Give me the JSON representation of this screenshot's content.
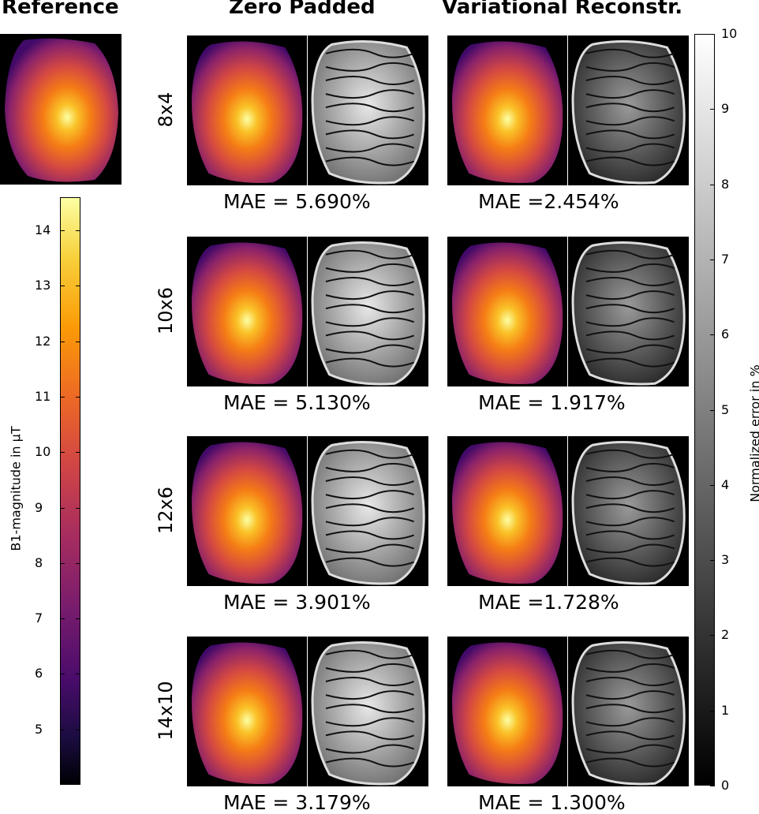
{
  "columns": {
    "reference": "Reference",
    "zero_padded": "Zero Padded",
    "variational": "Variational Reconstr."
  },
  "rows": [
    {
      "label": "8x4",
      "mae_zero": "MAE = 5.690%",
      "mae_var": "MAE =2.454%"
    },
    {
      "label": "10x6",
      "mae_zero": "MAE = 5.130%",
      "mae_var": "MAE = 1.917%"
    },
    {
      "label": "12x6",
      "mae_zero": "MAE = 3.901%",
      "mae_var": "MAE =1.728%"
    },
    {
      "label": "14x10",
      "mae_zero": "MAE = 3.179%",
      "mae_var": "MAE = 1.300%"
    }
  ],
  "b1_colorbar": {
    "label": "B1-magnitude in µT",
    "min": 4.0,
    "max": 14.6,
    "ticks": [
      "5",
      "6",
      "7",
      "8",
      "9",
      "10",
      "11",
      "12",
      "13",
      "14"
    ],
    "colormap": "inferno"
  },
  "error_colorbar": {
    "label": "Normalized error in %",
    "min": 0,
    "max": 10,
    "ticks": [
      "0",
      "1",
      "2",
      "3",
      "4",
      "5",
      "6",
      "7",
      "8",
      "9",
      "10"
    ],
    "colormap": "gray"
  }
}
